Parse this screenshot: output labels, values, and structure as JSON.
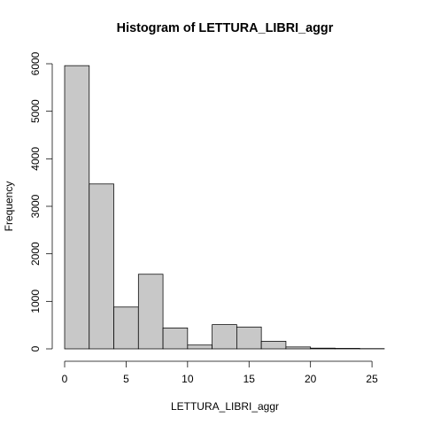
{
  "chart_data": {
    "type": "bar",
    "title": "Histogram of LETTURA_LIBRI_aggr",
    "xlabel": "LETTURA_LIBRI_aggr",
    "ylabel": "Frequency",
    "bin_edges": [
      0,
      2,
      4,
      6,
      8,
      10,
      12,
      14,
      16,
      18,
      20,
      22,
      24,
      26
    ],
    "values": [
      5960,
      3470,
      880,
      1570,
      440,
      80,
      510,
      460,
      160,
      40,
      15,
      10,
      5
    ],
    "xlim": [
      0,
      26
    ],
    "ylim": [
      0,
      6000
    ],
    "xticks": [
      0,
      5,
      10,
      15,
      20,
      25
    ],
    "yticks": [
      0,
      1000,
      2000,
      3000,
      4000,
      5000,
      6000
    ],
    "grid": false,
    "legend": "none"
  }
}
